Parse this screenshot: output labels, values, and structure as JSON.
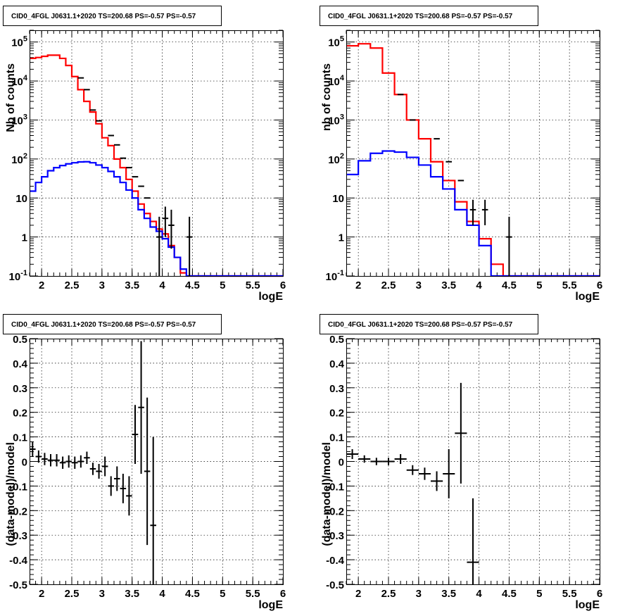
{
  "chart_data": [
    {
      "type": "line",
      "title": "CID0_4FGL J0631.1+2020 TS=200.68 PS=-0.57 PS=-0.57",
      "xlabel": "logE",
      "ylabel": "Nb of counts",
      "xlim": [
        1.8,
        6.0
      ],
      "ylim": [
        0.1,
        200000
      ],
      "yscale": "log",
      "grid": true,
      "xticks": [
        "2",
        "2.5",
        "3",
        "3.5",
        "4",
        "4.5",
        "5",
        "5.5",
        "6"
      ],
      "yticks": [
        "10^-1",
        "1",
        "10",
        "10^2",
        "10^3",
        "10^4",
        "10^5"
      ],
      "bin_edges": [
        1.8,
        1.9,
        2.0,
        2.1,
        2.2,
        2.3,
        2.4,
        2.5,
        2.6,
        2.7,
        2.8,
        2.9,
        3.0,
        3.1,
        3.2,
        3.3,
        3.4,
        3.5,
        3.6,
        3.7,
        3.8,
        3.9,
        4.0,
        4.1,
        4.2,
        4.3,
        4.4,
        4.5,
        4.6,
        4.7,
        4.8,
        4.9,
        5.0,
        5.1,
        5.2,
        5.3,
        5.4,
        5.5,
        5.6,
        5.7,
        5.8,
        5.9,
        6.0
      ],
      "series": [
        {
          "name": "",
          "color": "#ff0000",
          "style": "step",
          "values": [
            38000,
            40000,
            43000,
            46000,
            46000,
            38000,
            25000,
            13000,
            6000,
            3000,
            1600,
            800,
            350,
            220,
            100,
            60,
            30,
            15,
            7,
            4,
            2.5,
            1.6,
            1.2,
            0.6,
            0.3,
            0.12,
            0.1,
            0.1,
            0.1,
            0.1,
            0.1,
            0.1,
            0.1,
            0.1,
            0.1,
            0.1,
            0.1,
            0.1,
            0.1,
            0.1,
            0.1,
            0.1
          ]
        },
        {
          "name": "",
          "color": "#0000ff",
          "style": "step",
          "values": [
            15,
            25,
            35,
            50,
            60,
            68,
            75,
            80,
            84,
            85,
            80,
            70,
            60,
            48,
            35,
            25,
            16,
            10,
            5,
            3,
            1.8,
            1.4,
            0.9,
            0.55,
            0.3,
            0.15,
            0.1,
            0.1,
            0.1,
            0.1,
            0.1,
            0.1,
            0.1,
            0.1,
            0.1,
            0.1,
            0.1,
            0.1,
            0.1,
            0.1,
            0.1,
            0.1
          ]
        },
        {
          "name": "",
          "color": "#000000",
          "style": "errorbar",
          "points": [
            [
              2.65,
              12000,
              0,
              0
            ],
            [
              2.75,
              6000,
              0,
              0
            ],
            [
              2.85,
              1800,
              0,
              0
            ],
            [
              2.95,
              950,
              0,
              0
            ],
            [
              3.15,
              400,
              0,
              0
            ],
            [
              3.25,
              230,
              0,
              0
            ],
            [
              3.35,
              105,
              0,
              0
            ],
            [
              3.45,
              60,
              0,
              0
            ],
            [
              3.55,
              35,
              0,
              0
            ],
            [
              3.65,
              20,
              0,
              0
            ],
            [
              3.75,
              10,
              0,
              0
            ],
            [
              3.95,
              1,
              0.9,
              2.3
            ],
            [
              4.05,
              3,
              2,
              3
            ],
            [
              4.15,
              2,
              1.5,
              3
            ],
            [
              4.45,
              1,
              0.9,
              2.3
            ]
          ]
        }
      ]
    },
    {
      "type": "line",
      "title": "CID0_4FGL J0631.1+2020 TS=200.68 PS=-0.57 PS=-0.57",
      "xlabel": "logE",
      "ylabel": "nb of counts",
      "xlim": [
        1.8,
        6.0
      ],
      "ylim": [
        0.1,
        200000
      ],
      "yscale": "log",
      "grid": true,
      "xticks": [
        "2",
        "2.5",
        "3",
        "3.5",
        "4",
        "4.5",
        "5",
        "5.5",
        "6"
      ],
      "yticks": [
        "10^-1",
        "1",
        "10",
        "10^2",
        "10^3",
        "10^4",
        "10^5"
      ],
      "bin_edges": [
        1.8,
        2.0,
        2.2,
        2.4,
        2.6,
        2.8,
        3.0,
        3.2,
        3.4,
        3.6,
        3.8,
        4.0,
        4.2,
        4.4,
        4.6,
        4.8,
        5.0,
        5.2,
        5.4,
        5.6,
        5.8,
        6.0
      ],
      "series": [
        {
          "name": "",
          "color": "#ff0000",
          "style": "step",
          "values": [
            80000,
            90000,
            70000,
            16000,
            4500,
            1000,
            330,
            85,
            28,
            8,
            2.5,
            0.9,
            0.2,
            0.1,
            0.1,
            0.1,
            0.1,
            0.1,
            0.1,
            0.1,
            0.1
          ]
        },
        {
          "name": "",
          "color": "#0000ff",
          "style": "step",
          "values": [
            40,
            90,
            140,
            160,
            150,
            110,
            70,
            35,
            17,
            5,
            2,
            0.6,
            0.1,
            0.1,
            0.1,
            0.1,
            0.1,
            0.1,
            0.1,
            0.1,
            0.1
          ]
        },
        {
          "name": "",
          "color": "#000000",
          "style": "errorbar",
          "points": [
            [
              2.7,
              4500,
              0,
              0
            ],
            [
              2.9,
              1000,
              0,
              0
            ],
            [
              3.3,
              330,
              0,
              0
            ],
            [
              3.5,
              85,
              0,
              0
            ],
            [
              3.7,
              28,
              0,
              0
            ],
            [
              3.9,
              5,
              3,
              4
            ],
            [
              4.1,
              5,
              3,
              4
            ],
            [
              4.5,
              1,
              0.9,
              2.3
            ]
          ]
        }
      ]
    },
    {
      "type": "scatter",
      "title": "CID0_4FGL J0631.1+2020 TS=200.68 PS=-0.57 PS=-0.57",
      "xlabel": "logE",
      "ylabel": "(data-model)/model",
      "xlim": [
        1.8,
        6.0
      ],
      "ylim": [
        -0.5,
        0.5
      ],
      "grid": true,
      "xticks": [
        "2",
        "2.5",
        "3",
        "3.5",
        "4",
        "4.5",
        "5",
        "5.5",
        "6"
      ],
      "yticks": [
        "-0.5",
        "-0.4",
        "-0.3",
        "-0.2",
        "-0.1",
        "0",
        "0.1",
        "0.2",
        "0.3",
        "0.4",
        "0.5"
      ],
      "bin_width": 0.1,
      "series": [
        {
          "name": "",
          "color": "#000000",
          "style": "errorbar",
          "points": [
            [
              1.85,
              0.05,
              0.03
            ],
            [
              1.95,
              0.02,
              0.025
            ],
            [
              2.05,
              0.01,
              0.025
            ],
            [
              2.15,
              0.005,
              0.025
            ],
            [
              2.25,
              0.005,
              0.025
            ],
            [
              2.35,
              -0.005,
              0.025
            ],
            [
              2.45,
              0.0,
              0.025
            ],
            [
              2.55,
              -0.005,
              0.025
            ],
            [
              2.65,
              0.0,
              0.025
            ],
            [
              2.75,
              0.015,
              0.025
            ],
            [
              2.85,
              -0.03,
              0.025
            ],
            [
              2.95,
              -0.04,
              0.03
            ],
            [
              3.05,
              -0.02,
              0.04
            ],
            [
              3.15,
              -0.1,
              0.04
            ],
            [
              3.25,
              -0.07,
              0.05
            ],
            [
              3.35,
              -0.11,
              0.06
            ],
            [
              3.45,
              -0.14,
              0.08
            ],
            [
              3.55,
              0.11,
              0.12
            ],
            [
              3.65,
              0.22,
              0.27
            ],
            [
              3.75,
              -0.04,
              0.3
            ],
            [
              3.85,
              -0.26,
              0.36
            ]
          ]
        }
      ]
    },
    {
      "type": "scatter",
      "title": "CID0_4FGL J0631.1+2020 TS=200.68 PS=-0.57 PS=-0.57",
      "xlabel": "logE",
      "ylabel": "(data-model)/model",
      "xlim": [
        1.8,
        6.0
      ],
      "ylim": [
        -0.5,
        0.5
      ],
      "grid": true,
      "xticks": [
        "2",
        "2.5",
        "3",
        "3.5",
        "4",
        "4.5",
        "5",
        "5.5",
        "6"
      ],
      "yticks": [
        "-0.5",
        "-0.4",
        "-0.3",
        "-0.2",
        "-0.1",
        "0",
        "0.1",
        "0.2",
        "0.3",
        "0.4",
        "0.5"
      ],
      "bin_width": 0.2,
      "series": [
        {
          "name": "",
          "color": "#000000",
          "style": "errorbar",
          "points": [
            [
              1.9,
              0.03,
              0.02
            ],
            [
              2.1,
              0.01,
              0.015
            ],
            [
              2.3,
              0.0,
              0.015
            ],
            [
              2.5,
              0.0,
              0.015
            ],
            [
              2.7,
              0.01,
              0.02
            ],
            [
              2.9,
              -0.035,
              0.02
            ],
            [
              3.1,
              -0.05,
              0.025
            ],
            [
              3.3,
              -0.08,
              0.04
            ],
            [
              3.5,
              -0.05,
              0.1
            ],
            [
              3.7,
              0.115,
              0.205
            ],
            [
              3.9,
              -0.41,
              0.26
            ]
          ]
        }
      ]
    }
  ]
}
